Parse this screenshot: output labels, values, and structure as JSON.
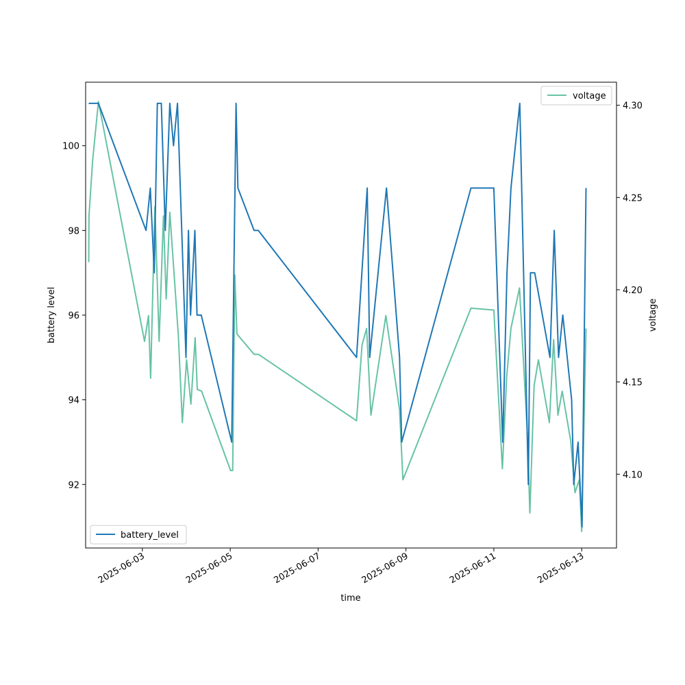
{
  "chart_data": {
    "type": "line",
    "xlabel": "time",
    "ylabel_left": "battery level",
    "ylabel_right": "voltage",
    "x_ticks": [
      "2025-06-03",
      "2025-06-05",
      "2025-06-07",
      "2025-06-09",
      "2025-06-11",
      "2025-06-13"
    ],
    "xlim": [
      "2025-06-01T17:00",
      "2025-06-13T19:00"
    ],
    "ylim_left": [
      90.5,
      101.5
    ],
    "ylim_right": [
      4.06,
      4.3125
    ],
    "y_ticks_left": [
      92,
      94,
      96,
      98,
      100
    ],
    "y_ticks_right": [
      4.1,
      4.15,
      4.2,
      4.25,
      4.3
    ],
    "y_tick_labels_right": [
      "4.10",
      "4.15",
      "4.20",
      "4.25",
      "4.30"
    ],
    "grid": false,
    "series": [
      {
        "name": "battery_level",
        "axis": "left",
        "color": "#1f77b4",
        "legend_position": "lower-left",
        "points": [
          [
            "2025-06-01T18:40",
            101
          ],
          [
            "2025-06-01T20:50",
            101
          ],
          [
            "2025-06-02T00:00",
            101
          ],
          [
            "2025-06-03T02:00",
            98
          ],
          [
            "2025-06-03T04:20",
            99
          ],
          [
            "2025-06-03T06:30",
            97
          ],
          [
            "2025-06-03T08:10",
            101
          ],
          [
            "2025-06-03T10:20",
            101
          ],
          [
            "2025-06-03T12:30",
            98
          ],
          [
            "2025-06-03T15:00",
            101
          ],
          [
            "2025-06-03T17:00",
            100
          ],
          [
            "2025-06-03T19:10",
            101
          ],
          [
            "2025-06-03T23:50",
            95
          ],
          [
            "2025-06-04T01:10",
            98
          ],
          [
            "2025-06-04T02:20",
            96
          ],
          [
            "2025-06-04T04:40",
            98
          ],
          [
            "2025-06-04T05:50",
            96
          ],
          [
            "2025-06-04T08:10",
            96
          ],
          [
            "2025-06-05T00:50",
            93
          ],
          [
            "2025-06-05T03:10",
            101
          ],
          [
            "2025-06-05T04:10",
            99
          ],
          [
            "2025-06-05T13:00",
            98
          ],
          [
            "2025-06-05T15:20",
            98
          ],
          [
            "2025-06-07T21:00",
            95
          ],
          [
            "2025-06-08T02:50",
            99
          ],
          [
            "2025-06-08T04:10",
            95
          ],
          [
            "2025-06-08T13:20",
            99
          ],
          [
            "2025-06-08T20:30",
            95
          ],
          [
            "2025-06-08T21:40",
            93
          ],
          [
            "2025-06-10T11:30",
            99
          ],
          [
            "2025-06-11T00:00",
            99
          ],
          [
            "2025-06-11T04:50",
            93
          ],
          [
            "2025-06-11T07:10",
            97
          ],
          [
            "2025-06-11T09:20",
            99
          ],
          [
            "2025-06-11T14:10",
            101
          ],
          [
            "2025-06-11T18:50",
            92
          ],
          [
            "2025-06-11T20:00",
            97
          ],
          [
            "2025-06-11T22:20",
            97
          ],
          [
            "2025-06-12T06:40",
            95
          ],
          [
            "2025-06-12T09:00",
            98
          ],
          [
            "2025-06-12T11:20",
            95
          ],
          [
            "2025-06-12T13:40",
            96
          ],
          [
            "2025-06-12T18:30",
            94
          ],
          [
            "2025-06-12T19:40",
            92
          ],
          [
            "2025-06-12T22:00",
            93
          ],
          [
            "2025-06-13T00:10",
            91
          ],
          [
            "2025-06-13T02:20",
            99
          ]
        ]
      },
      {
        "name": "voltage",
        "axis": "right",
        "color": "#66c2a5",
        "legend_position": "upper-right",
        "points": [
          [
            "2025-06-01T18:40",
            4.215
          ],
          [
            "2025-06-01T18:50",
            4.24
          ],
          [
            "2025-06-01T20:50",
            4.27
          ],
          [
            "2025-06-02T00:00",
            4.302
          ],
          [
            "2025-06-03T01:10",
            4.172
          ],
          [
            "2025-06-03T03:20",
            4.186
          ],
          [
            "2025-06-03T04:30",
            4.152
          ],
          [
            "2025-06-03T06:50",
            4.245
          ],
          [
            "2025-06-03T09:10",
            4.172
          ],
          [
            "2025-06-03T11:30",
            4.24
          ],
          [
            "2025-06-03T13:00",
            4.195
          ],
          [
            "2025-06-03T15:00",
            4.242
          ],
          [
            "2025-06-03T19:40",
            4.175
          ],
          [
            "2025-06-03T21:50",
            4.128
          ],
          [
            "2025-06-04T00:10",
            4.162
          ],
          [
            "2025-06-04T02:30",
            4.138
          ],
          [
            "2025-06-04T04:50",
            4.174
          ],
          [
            "2025-06-04T06:00",
            4.146
          ],
          [
            "2025-06-04T08:20",
            4.145
          ],
          [
            "2025-06-05T00:10",
            4.102
          ],
          [
            "2025-06-05T01:20",
            4.102
          ],
          [
            "2025-06-05T02:30",
            4.208
          ],
          [
            "2025-06-05T03:40",
            4.176
          ],
          [
            "2025-06-05T13:00",
            4.165
          ],
          [
            "2025-06-05T15:20",
            4.165
          ],
          [
            "2025-06-07T21:00",
            4.129
          ],
          [
            "2025-06-08T00:00",
            4.17
          ],
          [
            "2025-06-08T02:30",
            4.179
          ],
          [
            "2025-06-08T04:50",
            4.132
          ],
          [
            "2025-06-08T13:00",
            4.186
          ],
          [
            "2025-06-08T20:30",
            4.135
          ],
          [
            "2025-06-08T22:20",
            4.097
          ],
          [
            "2025-06-10T11:30",
            4.19
          ],
          [
            "2025-06-11T00:00",
            4.189
          ],
          [
            "2025-06-11T04:40",
            4.103
          ],
          [
            "2025-06-11T07:00",
            4.153
          ],
          [
            "2025-06-11T09:20",
            4.179
          ],
          [
            "2025-06-11T14:00",
            4.201
          ],
          [
            "2025-06-11T18:30",
            4.118
          ],
          [
            "2025-06-11T19:40",
            4.079
          ],
          [
            "2025-06-11T22:00",
            4.148
          ],
          [
            "2025-06-12T00:20",
            4.162
          ],
          [
            "2025-06-12T06:20",
            4.128
          ],
          [
            "2025-06-12T08:40",
            4.173
          ],
          [
            "2025-06-12T11:00",
            4.132
          ],
          [
            "2025-06-12T13:20",
            4.145
          ],
          [
            "2025-06-12T18:00",
            4.118
          ],
          [
            "2025-06-12T20:20",
            4.09
          ],
          [
            "2025-06-12T22:40",
            4.097
          ],
          [
            "2025-06-13T00:00",
            4.069
          ],
          [
            "2025-06-13T02:20",
            4.179
          ]
        ]
      }
    ]
  }
}
